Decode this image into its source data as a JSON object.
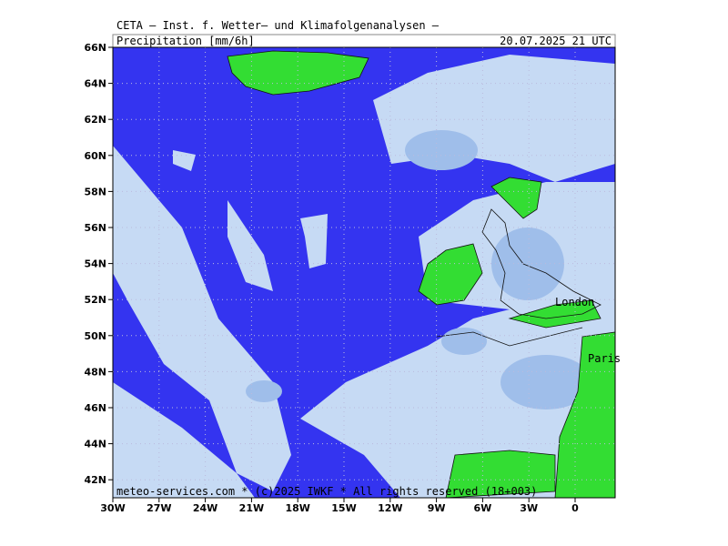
{
  "header": {
    "line": "CETA — Inst. f. Wetter— und Klimafolgenanalysen —",
    "field": "Precipitation [mm/6h]",
    "valid": "20.07.2025 21 UTC"
  },
  "map": {
    "lat_labels": [
      "66N",
      "64N",
      "62N",
      "60N",
      "58N",
      "56N",
      "54N",
      "52N",
      "50N",
      "48N",
      "46N",
      "44N",
      "42N"
    ],
    "lon_labels": [
      "30W",
      "27W",
      "24W",
      "21W",
      "18W",
      "15W",
      "12W",
      "9W",
      "6W",
      "3W",
      "0"
    ],
    "places": [
      "London",
      "Paris"
    ],
    "footer": "meteo-services.com * (c)2025 IWKF * All rights reserved (18+003)"
  }
}
